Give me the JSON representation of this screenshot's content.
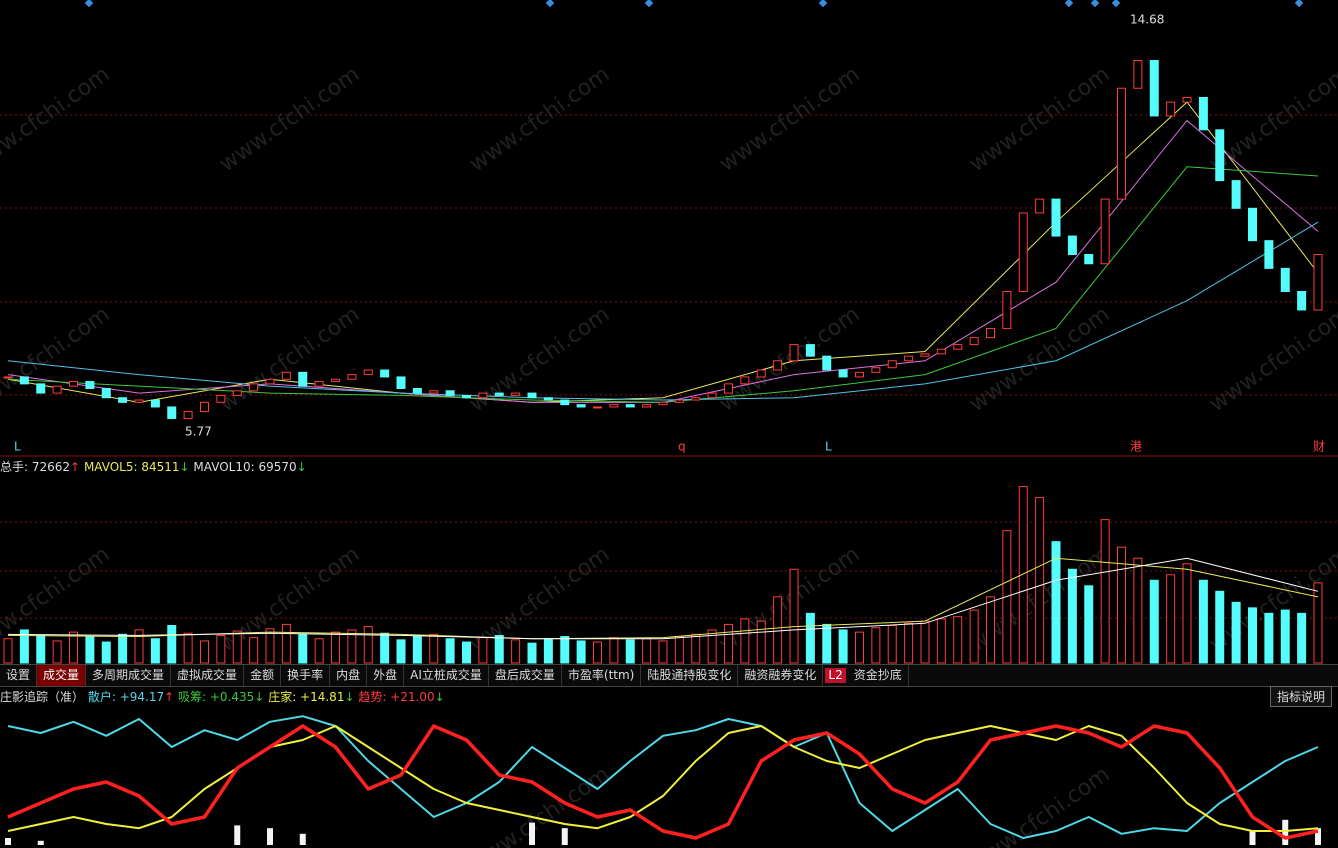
{
  "main": {
    "high_label": "14.68",
    "low_label": "5.77",
    "markers": [
      "L",
      "q",
      "L",
      "港",
      "财"
    ],
    "price_range": [
      5.26,
      15.11
    ],
    "close": [
      6.95,
      6.8,
      6.6,
      6.75,
      6.85,
      6.7,
      6.5,
      6.4,
      6.45,
      6.3,
      6.05,
      6.2,
      6.4,
      6.55,
      6.65,
      6.8,
      6.9,
      7.05,
      6.75,
      6.85,
      6.9,
      7.0,
      7.1,
      6.95,
      6.7,
      6.6,
      6.65,
      6.55,
      6.5,
      6.6,
      6.55,
      6.6,
      6.5,
      6.45,
      6.35,
      6.3,
      6.3,
      6.35,
      6.3,
      6.35,
      6.4,
      6.45,
      6.5,
      6.6,
      6.8,
      6.95,
      7.1,
      7.3,
      7.65,
      7.4,
      7.1,
      6.95,
      7.05,
      7.15,
      7.3,
      7.4,
      7.45,
      7.55,
      7.65,
      7.8,
      8.0,
      8.8,
      10.5,
      10.8,
      10.0,
      9.6,
      9.4,
      10.8,
      13.2,
      13.8,
      12.6,
      12.9,
      13.0,
      12.3,
      11.2,
      10.6,
      9.9,
      9.3,
      8.8,
      8.4,
      9.6
    ],
    "up_color": "#ff3c3c",
    "down_color": "#54fcfc",
    "ma_lines": [
      {
        "color": "#e8e85a",
        "values": [
          6.9,
          6.4,
          6.9,
          6.6,
          6.4,
          6.5,
          7.3,
          7.5,
          10.3,
          12.9,
          9.2
        ]
      },
      {
        "color": "#e070e0",
        "values": [
          7.0,
          6.6,
          6.8,
          6.6,
          6.4,
          6.4,
          7.0,
          7.3,
          9.0,
          12.5,
          10.1
        ]
      },
      {
        "color": "#3cc83c",
        "values": [
          6.9,
          6.75,
          6.6,
          6.55,
          6.45,
          6.4,
          6.65,
          7.0,
          8.0,
          11.5,
          11.3
        ]
      },
      {
        "color": "#4fc3e8",
        "values": [
          7.3,
          7.0,
          6.75,
          6.6,
          6.5,
          6.45,
          6.5,
          6.8,
          7.3,
          8.6,
          10.3
        ]
      }
    ]
  },
  "volume": {
    "header": [
      "总手: 72662",
      "↑",
      "MAVOL5: 84511",
      "↓",
      "MAVOL10: 69570",
      "↓"
    ],
    "range": [
      0,
      175000
    ],
    "values": [
      22000,
      30000,
      25000,
      20000,
      28000,
      24000,
      19000,
      26000,
      30000,
      22000,
      34000,
      27000,
      20000,
      25000,
      29000,
      23000,
      31000,
      35000,
      26000,
      22000,
      28000,
      30000,
      33000,
      27000,
      21000,
      24000,
      26000,
      22000,
      19000,
      23000,
      25000,
      21000,
      18000,
      22000,
      24000,
      20000,
      19000,
      23000,
      21000,
      22000,
      20000,
      24000,
      26000,
      30000,
      35000,
      40000,
      38000,
      60000,
      85000,
      45000,
      35000,
      30000,
      28000,
      32000,
      34000,
      36000,
      38000,
      40000,
      42000,
      48000,
      60000,
      120000,
      160000,
      150000,
      110000,
      85000,
      70000,
      130000,
      105000,
      95000,
      75000,
      80000,
      90000,
      75000,
      65000,
      55000,
      50000,
      45000,
      48000,
      45000,
      72662
    ],
    "mavol": [
      {
        "color": "#e8e85a",
        "values": [
          25000,
          24000,
          28000,
          26000,
          22000,
          23000,
          33000,
          38000,
          95000,
          85000,
          60000
        ]
      },
      {
        "color": "#ffffff",
        "values": [
          26000,
          25000,
          27000,
          25000,
          22000,
          22000,
          30000,
          36000,
          75000,
          95000,
          65000
        ]
      }
    ]
  },
  "tabs": [
    "设置",
    "成交量",
    "多周期成交量",
    "虚拟成交量",
    "金额",
    "换手率",
    "内盘",
    "外盘",
    "AI立桩成交量",
    "盘后成交量",
    "市盈率(ttm)",
    "陆股通持股变化",
    "融资融券变化",
    "L2",
    "资金抄底"
  ],
  "indicator": {
    "title": "庄影追踪（准）",
    "header": [
      "散户: +94.17",
      "↑",
      "吸筹: +0.435",
      "↓",
      "庄家: +14.81",
      "↓",
      "趋势: +21.00",
      "↓"
    ],
    "help_button": "指标说明",
    "range": [
      0,
      100
    ],
    "lines": [
      {
        "color": "#4fd8e8",
        "width": 2,
        "values": [
          85,
          80,
          88,
          78,
          90,
          70,
          82,
          75,
          88,
          92,
          85,
          60,
          40,
          20,
          30,
          45,
          70,
          55,
          40,
          60,
          78,
          82,
          90,
          85,
          70,
          80,
          30,
          10,
          25,
          40,
          15,
          5,
          10,
          20,
          8,
          12,
          10,
          30,
          45,
          60,
          70
        ]
      },
      {
        "color": "#f0f03c",
        "width": 2,
        "values": [
          10,
          15,
          20,
          15,
          12,
          20,
          40,
          55,
          70,
          75,
          85,
          70,
          55,
          40,
          30,
          25,
          20,
          15,
          12,
          20,
          35,
          60,
          80,
          85,
          70,
          60,
          55,
          65,
          75,
          80,
          85,
          80,
          75,
          85,
          78,
          55,
          30,
          15,
          10,
          10,
          12
        ]
      },
      {
        "color": "#ff2020",
        "width": 3.5,
        "values": [
          20,
          30,
          40,
          45,
          35,
          15,
          20,
          55,
          70,
          85,
          70,
          40,
          50,
          85,
          75,
          50,
          45,
          30,
          20,
          25,
          10,
          5,
          15,
          60,
          75,
          80,
          65,
          40,
          30,
          45,
          75,
          80,
          85,
          80,
          70,
          85,
          80,
          55,
          20,
          5,
          10
        ]
      }
    ],
    "bars": [
      5,
      3,
      0,
      0,
      0,
      0,
      0,
      14,
      12,
      8,
      0,
      0,
      0,
      0,
      0,
      0,
      16,
      12,
      0,
      0,
      0,
      0,
      0,
      0,
      0,
      0,
      0,
      0,
      0,
      0,
      0,
      0,
      0,
      0,
      0,
      0,
      0,
      0,
      10,
      18,
      12
    ]
  },
  "watermark": "www.cfchi.com"
}
